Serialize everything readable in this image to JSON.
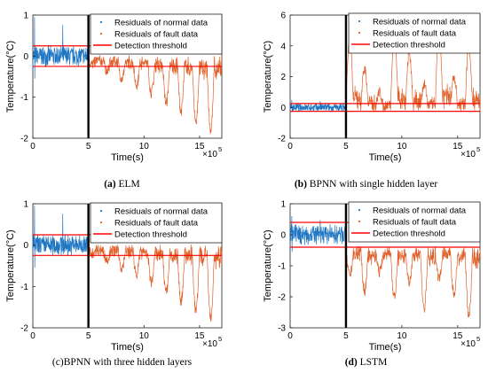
{
  "captions": [
    {
      "letter": "(a)",
      "text": " ELM"
    },
    {
      "letter": "(b)",
      "text": " BPNN with single hidden layer"
    },
    {
      "letter": "(c)",
      "text": "BPNN with three hidden layers"
    },
    {
      "letter": "(d)",
      "text": " LSTM"
    }
  ],
  "colors": {
    "normal": "#1f77c4",
    "fault": "#e0602a",
    "threshold": "#ff0000",
    "divider": "#000000"
  },
  "chart_data": [
    {
      "type": "scatter",
      "xlabel": "Time(s)",
      "ylabel": "Temperature(°C)",
      "x_multiplier": "×10",
      "x_exponent": "5",
      "xlim": [
        0,
        17
      ],
      "ylim": [
        -2,
        1
      ],
      "xticks": [
        0,
        5,
        10,
        15
      ],
      "yticks": [
        1,
        0,
        -1,
        -2
      ],
      "legend": [
        "Residuals of normal data",
        "Residuals of fault data",
        "Detection threshold"
      ],
      "legend_position": "top-right",
      "fault_start": 5,
      "thresholds": [
        0.25,
        -0.25
      ],
      "normal": {
        "center": 0.0,
        "spread": 0.28,
        "spikes": [
          0.95,
          -0.55
        ]
      },
      "fault": {
        "pattern": [
          -0.2,
          -0.35,
          -0.55,
          -0.7,
          -0.9,
          -1.15,
          -1.35,
          -1.6,
          -1.8
        ],
        "level_top": -0.1
      },
      "series": [
        {
          "name": "Residuals of normal data",
          "x_range": [
            0,
            5
          ]
        },
        {
          "name": "Residuals of fault data",
          "x_range": [
            5,
            17
          ]
        },
        {
          "name": "Detection threshold",
          "values": [
            0.25,
            -0.25
          ]
        }
      ]
    },
    {
      "type": "scatter",
      "xlabel": "Time(s)",
      "ylabel": "Temperature(°C)",
      "x_multiplier": "×10",
      "x_exponent": "5",
      "xlim": [
        0,
        17
      ],
      "ylim": [
        -2,
        6
      ],
      "xticks": [
        0,
        5,
        10,
        15
      ],
      "yticks": [
        6,
        4,
        2,
        0,
        -2
      ],
      "legend": [
        "Residuals of normal data",
        "Residuals of fault data",
        "Detection threshold"
      ],
      "legend_position": "top-right",
      "fault_start": 5,
      "thresholds": [
        0.25,
        -0.25
      ],
      "normal": {
        "center": 0.0,
        "spread": 0.3,
        "spikes": [
          0.5,
          -0.3
        ]
      },
      "fault": {
        "pattern": [
          4.5,
          2.5,
          1.0,
          4.8,
          3.5,
          1.5,
          5.2,
          2.0,
          4.0
        ],
        "level_top": 0.0
      },
      "series": [
        {
          "name": "Residuals of normal data",
          "x_range": [
            0,
            5
          ]
        },
        {
          "name": "Residuals of fault data",
          "x_range": [
            5,
            17
          ]
        },
        {
          "name": "Detection threshold",
          "values": [
            0.25,
            -0.25
          ]
        }
      ]
    },
    {
      "type": "scatter",
      "xlabel": "Time(s)",
      "ylabel": "Temperature(°C)",
      "x_multiplier": "×10",
      "x_exponent": "5",
      "xlim": [
        0,
        17
      ],
      "ylim": [
        -2,
        1
      ],
      "xticks": [
        0,
        5,
        10,
        15
      ],
      "yticks": [
        1,
        0,
        -1,
        -2
      ],
      "legend": [
        "Residuals of normal data",
        "Residuals of fault data",
        "Detection threshold"
      ],
      "legend_position": "top-right",
      "fault_start": 5,
      "thresholds": [
        0.25,
        -0.25
      ],
      "normal": {
        "center": 0.0,
        "spread": 0.28,
        "spikes": [
          0.95,
          -0.55
        ]
      },
      "fault": {
        "pattern": [
          -0.2,
          -0.35,
          -0.55,
          -0.7,
          -0.9,
          -1.15,
          -1.35,
          -1.6,
          -1.8
        ],
        "level_top": -0.1
      },
      "series": [
        {
          "name": "Residuals of normal data",
          "x_range": [
            0,
            5
          ]
        },
        {
          "name": "Residuals of fault data",
          "x_range": [
            5,
            17
          ]
        },
        {
          "name": "Detection threshold",
          "values": [
            0.25,
            -0.25
          ]
        }
      ]
    },
    {
      "type": "scatter",
      "xlabel": "Time(s)",
      "ylabel": "Temperature(°C)",
      "x_multiplier": "×10",
      "x_exponent": "5",
      "xlim": [
        0,
        17
      ],
      "ylim": [
        -3,
        1
      ],
      "xticks": [
        0,
        5,
        10,
        15
      ],
      "yticks": [
        1,
        0,
        -1,
        -2,
        -3
      ],
      "legend": [
        "Residuals of normal data",
        "Residuals of fault data",
        "Detection threshold"
      ],
      "legend_position": "top-right",
      "fault_start": 5,
      "thresholds": [
        0.4,
        -0.4
      ],
      "normal": {
        "center": 0.0,
        "spread": 0.35,
        "spikes": [
          0.6,
          -0.55
        ]
      },
      "fault": {
        "pattern": [
          -1.3,
          -1.8,
          -1.2,
          -2.0,
          -1.5,
          -2.4,
          -1.4,
          -1.9,
          -2.6
        ],
        "level_top": -0.5
      },
      "series": [
        {
          "name": "Residuals of normal data",
          "x_range": [
            0,
            5
          ]
        },
        {
          "name": "Residuals of fault data",
          "x_range": [
            5,
            17
          ]
        },
        {
          "name": "Detection threshold",
          "values": [
            0.4,
            -0.4
          ]
        }
      ]
    }
  ]
}
